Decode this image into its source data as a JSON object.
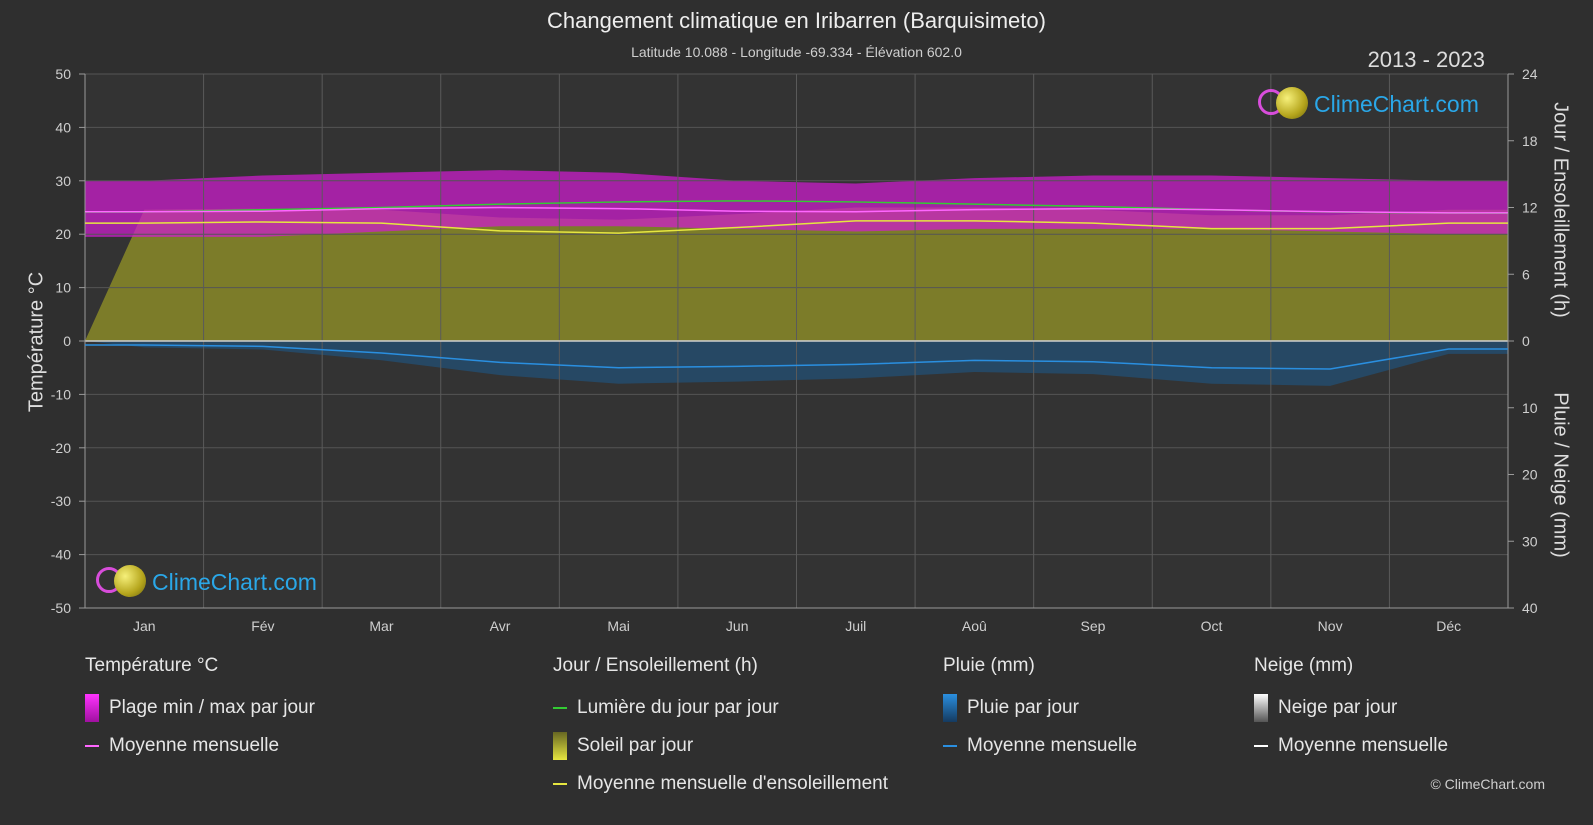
{
  "title": "Changement climatique en Iribarren (Barquisimeto)",
  "subtitle": "Latitude 10.088 - Longitude -69.334 - Élévation 602.0",
  "years": "2013 - 2023",
  "logo_text": "ClimeChart.com",
  "copyright": "© ClimeChart.com",
  "colors": {
    "background": "#2f2f2f",
    "temp_range": "#d01cd0",
    "temp_mean": "#ff66ff",
    "daylight": "#33cc33",
    "sunshine": "#8e8e28",
    "sunshine_mean": "#e6e640",
    "rain": "#1c6fb0",
    "rain_mean": "#2a8fe0",
    "snow_mean": "#ffffff",
    "logo_text": "#2aa7e8"
  },
  "chart_data": {
    "type": "area",
    "months": [
      "Jan",
      "Fév",
      "Mar",
      "Avr",
      "Mai",
      "Jun",
      "Juil",
      "Aoû",
      "Sep",
      "Oct",
      "Nov",
      "Déc"
    ],
    "left_axis": {
      "label": "Température °C",
      "ticks": [
        50,
        40,
        30,
        20,
        10,
        0,
        -10,
        -20,
        -30,
        -40,
        -50
      ],
      "range": [
        -50,
        50
      ]
    },
    "right_axis_top": {
      "label": "Jour / Ensoleillement (h)",
      "ticks": [
        24,
        18,
        12,
        6,
        0
      ],
      "range": [
        0,
        24
      ]
    },
    "right_axis_bottom": {
      "label": "Pluie / Neige (mm)",
      "ticks": [
        0,
        10,
        20,
        30,
        40
      ],
      "range": [
        0,
        40
      ]
    },
    "grid": true,
    "series": [
      {
        "name": "Plage min / max par jour",
        "kind": "band",
        "min": [
          19.5,
          19.5,
          20.5,
          21.5,
          21.5,
          21,
          20.5,
          21,
          21,
          21,
          20.5,
          20
        ],
        "max": [
          30,
          31,
          31.5,
          32,
          31.5,
          30,
          29.5,
          30.5,
          31,
          31,
          30.5,
          30
        ]
      },
      {
        "name": "Moyenne mensuelle (température)",
        "kind": "line",
        "values": [
          24.2,
          24.3,
          24.8,
          25.0,
          24.8,
          24.3,
          24.2,
          24.6,
          24.8,
          24.6,
          24.2,
          24.0
        ]
      },
      {
        "name": "Lumière du jour par jour",
        "kind": "line",
        "unit": "h",
        "values": [
          11.6,
          11.8,
          12.0,
          12.3,
          12.5,
          12.6,
          12.5,
          12.3,
          12.1,
          11.8,
          11.6,
          11.5
        ]
      },
      {
        "name": "Moyenne mensuelle d'ensoleillement",
        "kind": "line",
        "unit": "h",
        "values": [
          10.6,
          10.7,
          10.6,
          9.9,
          9.7,
          10.2,
          10.8,
          10.8,
          10.6,
          10.1,
          10.1,
          10.6
        ]
      },
      {
        "name": "Moyenne mensuelle (pluie)",
        "kind": "line",
        "unit": "mm",
        "values": [
          0.6,
          0.8,
          1.8,
          3.2,
          4.0,
          3.8,
          3.5,
          2.9,
          3.1,
          4.0,
          4.2,
          1.2
        ]
      },
      {
        "name": "Moyenne mensuelle (neige)",
        "kind": "line",
        "unit": "mm",
        "values": [
          0,
          0,
          0,
          0,
          0,
          0,
          0,
          0,
          0,
          0,
          0,
          0
        ]
      }
    ]
  },
  "legend": {
    "temperature": {
      "heading": "Température °C",
      "items": [
        "Plage min / max par jour",
        "Moyenne mensuelle"
      ]
    },
    "sun": {
      "heading": "Jour / Ensoleillement (h)",
      "items": [
        "Lumière du jour par jour",
        "Soleil par jour",
        "Moyenne mensuelle d'ensoleillement"
      ]
    },
    "rain": {
      "heading": "Pluie (mm)",
      "items": [
        "Pluie par jour",
        "Moyenne mensuelle"
      ]
    },
    "snow": {
      "heading": "Neige (mm)",
      "items": [
        "Neige par jour",
        "Moyenne mensuelle"
      ]
    }
  }
}
